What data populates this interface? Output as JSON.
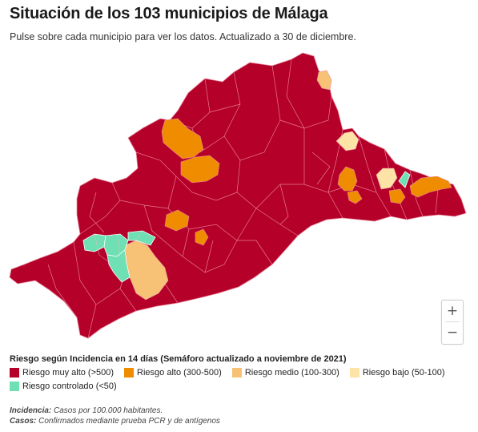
{
  "title": "Situación de los 103 municipios de Málaga",
  "subtitle": "Pulse sobre cada municipio para ver los datos. Actualizado a 30 de diciembre.",
  "colors": {
    "muy_alto": "#b5002a",
    "alto": "#f08c00",
    "medio": "#f7c276",
    "bajo": "#fde3a6",
    "controlado": "#6ee0b4"
  },
  "zoom": {
    "in_label": "+",
    "out_label": "−"
  },
  "legend": {
    "title": "Riesgo según Incidencia en 14 días (Semáforo actualizado a noviembre de 2021)",
    "items": [
      {
        "label": "Riesgo muy alto (>500)",
        "color": "#b5002a"
      },
      {
        "label": "Riesgo alto (300-500)",
        "color": "#f08c00"
      },
      {
        "label": "Riesgo medio (100-300)",
        "color": "#f7c276"
      },
      {
        "label": "Riesgo bajo (50-100)",
        "color": "#fde3a6"
      },
      {
        "label": "Riesgo controlado (<50)",
        "color": "#6ee0b4"
      }
    ]
  },
  "notes": {
    "incidencia_term": "Incidencia:",
    "incidencia_text": " Casos por 100.000 habitantes.",
    "casos_term": "Casos:",
    "casos_text": " Confirmados mediante prueba PCR y de antígenos"
  }
}
